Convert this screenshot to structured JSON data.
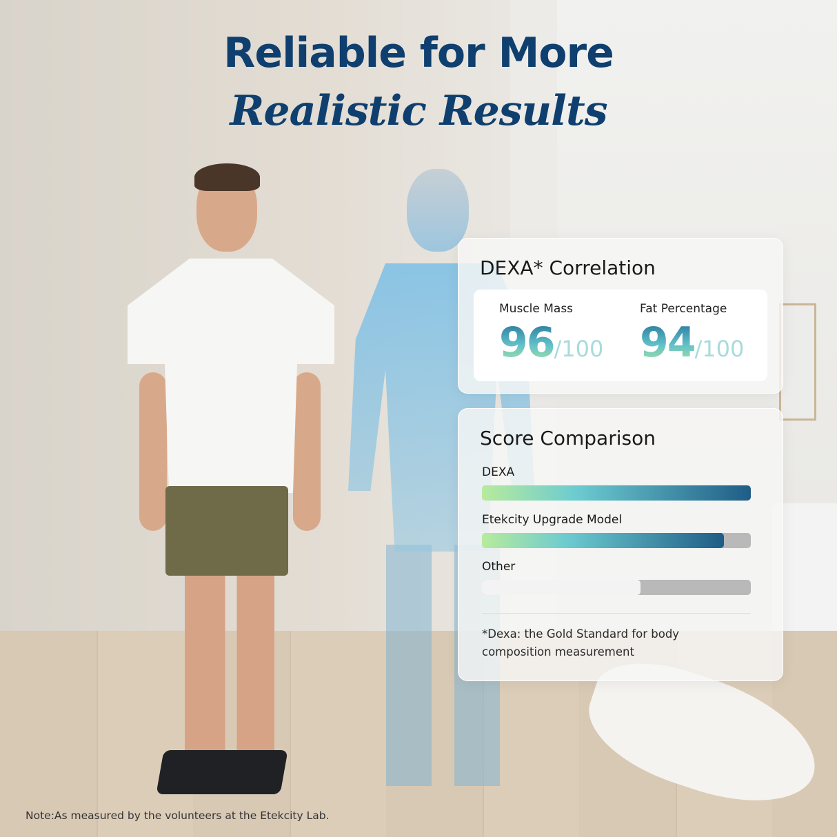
{
  "headline": {
    "line1": "Reliable for More",
    "line2": "Realistic Results"
  },
  "correlation_card": {
    "title": "DEXA* Correlation",
    "metrics": [
      {
        "label": "Muscle Mass",
        "value": "96",
        "denominator": "/100"
      },
      {
        "label": "Fat Percentage",
        "value": "94",
        "denominator": "/100"
      }
    ]
  },
  "comparison_card": {
    "title": "Score Comparison",
    "bars": [
      {
        "label": "DEXA",
        "fill_percent": 100
      },
      {
        "label": "Etekcity Upgrade Model",
        "fill_percent": 90
      },
      {
        "label": "Other",
        "fill_percent": 59
      }
    ],
    "footnote": "*Dexa: the Gold Standard for body composition measurement"
  },
  "note": "Note:As measured by the volunteers at the Etekcity Lab.",
  "colors": {
    "headline": "#0f3f6e",
    "bar_gradient_start": "#b8eb9c",
    "bar_gradient_end": "#1f5d86",
    "track": "#b9b9b9"
  }
}
